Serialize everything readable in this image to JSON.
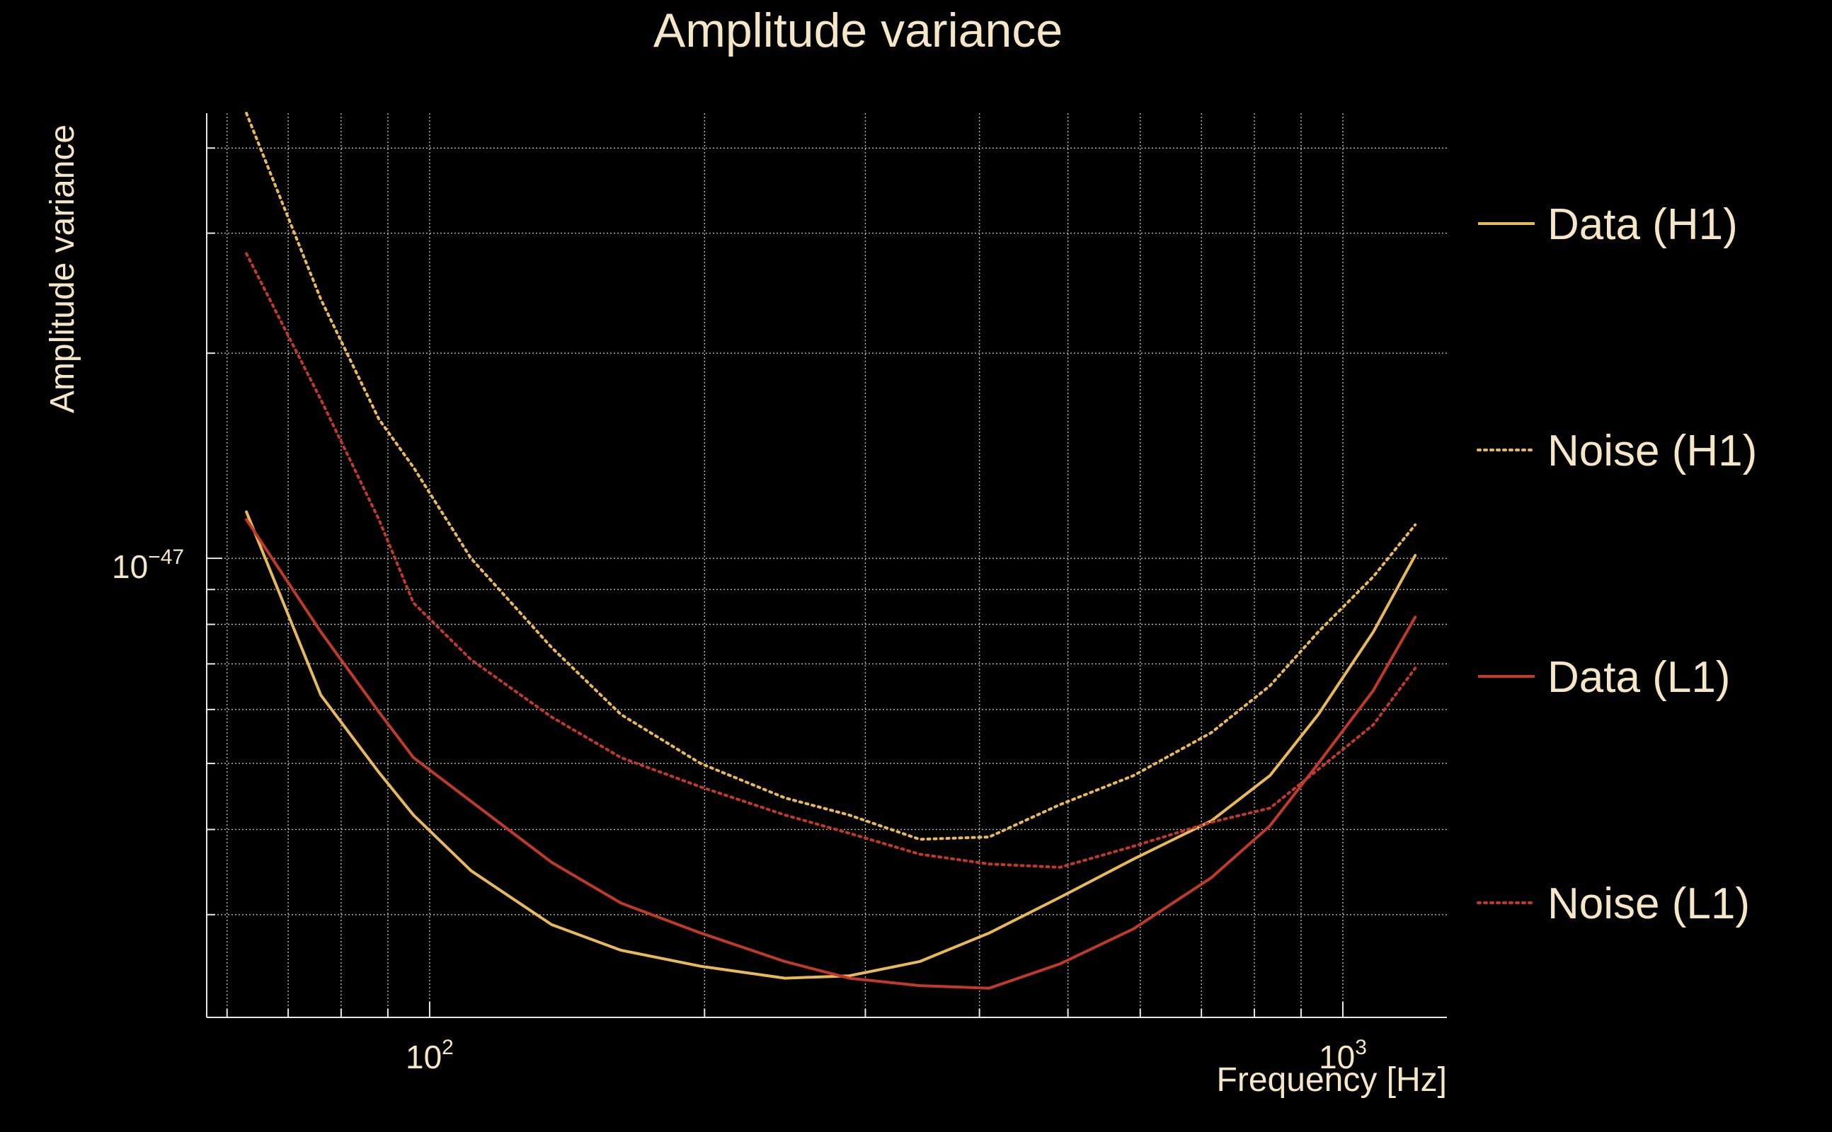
{
  "chart_data": {
    "type": "line",
    "title": "Amplitude variance",
    "xlabel": "Frequency [Hz]",
    "ylabel": "Amplitude variance",
    "xscale": "log",
    "yscale": "log",
    "xlim": [
      57,
      1300
    ],
    "ylim": [
      2.12e-48,
      4.5e-47
    ],
    "grid": true,
    "legend_position": "right",
    "x_ticks": [
      {
        "value": 100,
        "base": "10",
        "exp": "2"
      },
      {
        "value": 1000,
        "base": "10",
        "exp": "3"
      }
    ],
    "y_ticks": [
      {
        "value": 1e-47,
        "base": "10",
        "exp": "−47"
      }
    ],
    "series": [
      {
        "name": "Data (H1)",
        "color": "#e8b85c",
        "style": "solid",
        "x": [
          63,
          76,
          88,
          96,
          111,
          136,
          162,
          198,
          245,
          288,
          344,
          410,
          490,
          590,
          718,
          832,
          940,
          1080,
          1200
        ],
        "y": [
          1.17e-47,
          6.3e-48,
          4.85e-48,
          4.2e-48,
          3.48e-48,
          2.9e-48,
          2.66e-48,
          2.52e-48,
          2.42e-48,
          2.44e-48,
          2.56e-48,
          2.82e-48,
          3.18e-48,
          3.62e-48,
          4.12e-48,
          4.8e-48,
          5.9e-48,
          7.8e-48,
          1.01e-47
        ]
      },
      {
        "name": "Noise (H1)",
        "color": "#e8b85c",
        "style": "dotted",
        "x": [
          63,
          76,
          88,
          96,
          111,
          136,
          162,
          198,
          245,
          288,
          344,
          410,
          490,
          590,
          718,
          832,
          940,
          1080,
          1200
        ],
        "y": [
          4.5e-47,
          2.4e-47,
          1.6e-47,
          1.36e-47,
          1e-47,
          7.4e-48,
          5.9e-48,
          5e-48,
          4.45e-48,
          4.2e-48,
          3.87e-48,
          3.9e-48,
          4.35e-48,
          4.8e-48,
          5.55e-48,
          6.5e-48,
          7.8e-48,
          9.4e-48,
          1.12e-47
        ]
      },
      {
        "name": "Data (L1)",
        "color": "#c0392b",
        "style": "solid",
        "x": [
          63,
          76,
          88,
          96,
          111,
          136,
          162,
          198,
          245,
          288,
          344,
          410,
          490,
          590,
          718,
          832,
          940,
          1080,
          1200
        ],
        "y": [
          1.14e-47,
          7.8e-48,
          5.95e-48,
          5.1e-48,
          4.4e-48,
          3.58e-48,
          3.12e-48,
          2.82e-48,
          2.56e-48,
          2.42e-48,
          2.36e-48,
          2.34e-48,
          2.54e-48,
          2.86e-48,
          3.4e-48,
          4.05e-48,
          5e-48,
          6.4e-48,
          8.2e-48
        ]
      },
      {
        "name": "Noise (L1)",
        "color": "#c0392b",
        "style": "dotted",
        "x": [
          63,
          76,
          88,
          96,
          111,
          136,
          162,
          198,
          245,
          288,
          344,
          410,
          490,
          590,
          718,
          832,
          940,
          1080,
          1200
        ],
        "y": [
          2.8e-47,
          1.71e-47,
          1.14e-47,
          8.6e-48,
          7.1e-48,
          5.85e-48,
          5.1e-48,
          4.62e-48,
          4.2e-48,
          3.95e-48,
          3.68e-48,
          3.56e-48,
          3.52e-48,
          3.78e-48,
          4.1e-48,
          4.3e-48,
          4.9e-48,
          5.7e-48,
          6.9e-48
        ]
      }
    ]
  }
}
